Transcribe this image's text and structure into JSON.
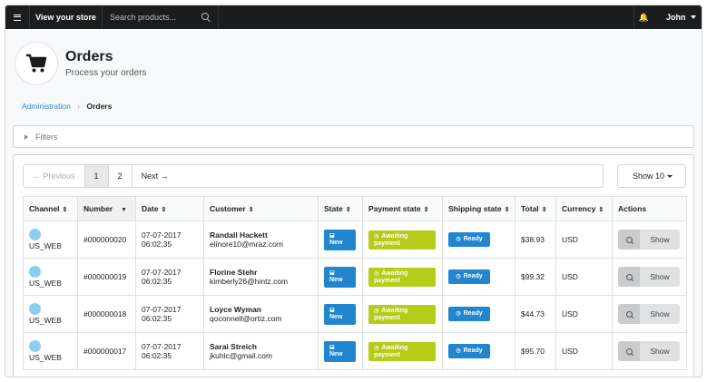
{
  "topbar": {
    "store_link": "View your store",
    "search_placeholder": "Search products...",
    "user_name": "John"
  },
  "header": {
    "title": "Orders",
    "subtitle": "Process your orders"
  },
  "breadcrumb": {
    "parent": "Administration",
    "current": "Orders"
  },
  "filters": {
    "label": "Filters"
  },
  "pagination": {
    "previous": "← Previous",
    "pages": [
      "1",
      "2"
    ],
    "next": "Next →",
    "show_label": "Show 10"
  },
  "table": {
    "columns": [
      "Channel",
      "Number",
      "Date",
      "Customer",
      "State",
      "Payment state",
      "Shipping state",
      "Total",
      "Currency",
      "Actions"
    ],
    "rows": [
      {
        "channel": "US_WEB",
        "number": "#000000020",
        "date": "07-07-2017",
        "time": "06:02:35",
        "customer_name": "Randall Hackett",
        "customer_email": "elinore10@mraz.com",
        "state": "New",
        "payment_state": "Awaiting payment",
        "shipping_state": "Ready",
        "total": "$38.93",
        "currency": "USD",
        "action": "Show"
      },
      {
        "channel": "US_WEB",
        "number": "#000000019",
        "date": "07-07-2017",
        "time": "06:02:35",
        "customer_name": "Florine Stehr",
        "customer_email": "kimberly26@hintz.com",
        "state": "New",
        "payment_state": "Awaiting payment",
        "shipping_state": "Ready",
        "total": "$99.32",
        "currency": "USD",
        "action": "Show"
      },
      {
        "channel": "US_WEB",
        "number": "#000000018",
        "date": "07-07-2017",
        "time": "06:02:35",
        "customer_name": "Loyce Wyman",
        "customer_email": "qoconnell@ortiz.com",
        "state": "New",
        "payment_state": "Awaiting payment",
        "shipping_state": "Ready",
        "total": "$44.73",
        "currency": "USD",
        "action": "Show"
      },
      {
        "channel": "US_WEB",
        "number": "#000000017",
        "date": "07-07-2017",
        "time": "06:02:35",
        "customer_name": "Sarai Streich",
        "customer_email": "jkuhic@gmail.com",
        "state": "New",
        "payment_state": "Awaiting payment",
        "shipping_state": "Ready",
        "total": "$95.70",
        "currency": "USD",
        "action": "Show"
      }
    ]
  },
  "colors": {
    "topbar": "#1b1c1d",
    "state_badge": "#2185d0",
    "payment_badge": "#b5cc18",
    "shipping_badge": "#2185d0",
    "channel_dot": "#8ecdf0",
    "bell": "#f7c600",
    "link": "#3a7ec8"
  }
}
